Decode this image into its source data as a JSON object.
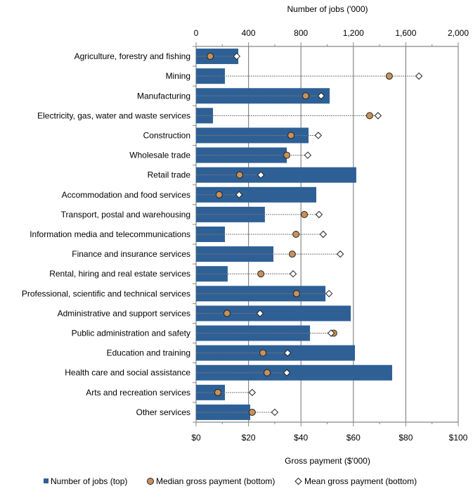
{
  "chart_data": {
    "type": "bar",
    "top_axis_title": "Number of jobs ('000)",
    "bottom_axis_title": "Gross payment ($'000)",
    "top_ticks": [
      "0",
      "400",
      "800",
      "1,200",
      "1,600",
      "2,000"
    ],
    "bottom_ticks": [
      "$0",
      "$20",
      "$40",
      "$60",
      "$80",
      "$100"
    ],
    "top_range": [
      0,
      2000
    ],
    "bottom_range": [
      0,
      100
    ],
    "grid": true,
    "legend_position": "bottom",
    "categories": [
      "Agriculture, forestry and fishing",
      "Mining",
      "Manufacturing",
      "Electricity, gas, water and waste services",
      "Construction",
      "Wholesale trade",
      "Retail trade",
      "Accommodation and food services",
      "Transport, postal and warehousing",
      "Information media and telecommunications",
      "Finance and insurance services",
      "Rental, hiring and real estate services",
      "Professional, scientific and technical services",
      "Administrative and support services",
      "Public administration and safety",
      "Education and training",
      "Health care and social assistance",
      "Arts and recreation services",
      "Other services"
    ],
    "series": [
      {
        "name": "Number of jobs (top)",
        "kind": "bar",
        "color": "#2E6096",
        "values": [
          322,
          220,
          1019,
          129,
          858,
          692,
          1222,
          917,
          525,
          220,
          590,
          241,
          987,
          1180,
          869,
          1212,
          1496,
          220,
          413
        ]
      },
      {
        "name": "Median gross payment (bottom)",
        "kind": "circle",
        "color": "#C8915A",
        "values": [
          5.4,
          73.7,
          41.8,
          66.2,
          36.2,
          34.6,
          16.6,
          8.8,
          41.3,
          38.1,
          36.7,
          24.7,
          38.3,
          11.8,
          52.5,
          25.5,
          27.1,
          8.3,
          21.4
        ]
      },
      {
        "name": "Mean gross payment (bottom)",
        "kind": "diamond",
        "color": "#FFFFFF",
        "values": [
          15.5,
          85,
          47.7,
          69.4,
          46.6,
          42.6,
          24.7,
          16.4,
          46.9,
          48.5,
          55,
          37,
          50.7,
          24.4,
          51.5,
          34.9,
          34.6,
          21.4,
          30
        ]
      }
    ]
  }
}
